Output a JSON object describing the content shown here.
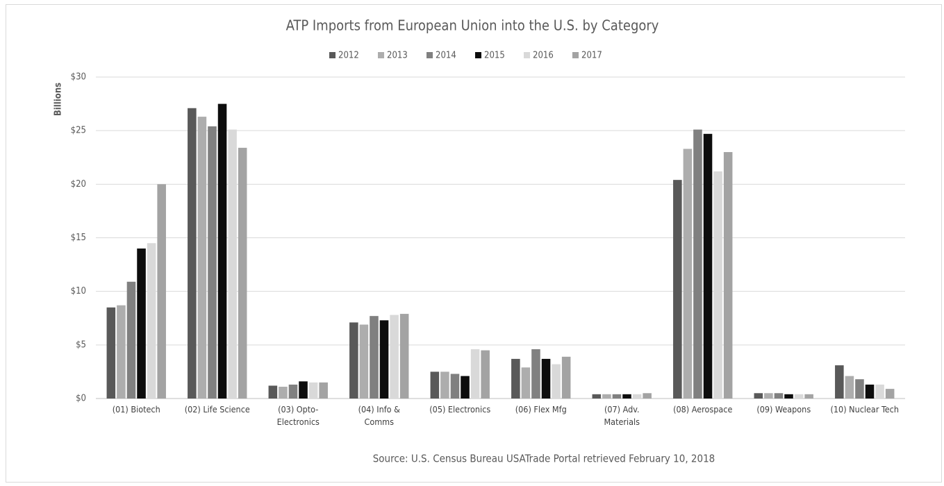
{
  "chart_data": {
    "type": "bar",
    "title": "ATP Imports from European Union into the U.S. by Category",
    "y_label": "Billions",
    "source": "Source: U.S. Census Bureau USATrade Portal retrieved February 10, 2018",
    "categories": [
      "(01) Biotech",
      "(02) Life Science",
      "(03) Opto-\nElectronics",
      "(04) Info &\nComms",
      "(05) Electronics",
      "(06) Flex Mfg",
      "(07) Adv.\nMaterials",
      "(08) Aerospace",
      "(09) Weapons",
      "(10) Nuclear Tech"
    ],
    "series": [
      {
        "name": "2012",
        "color": "#595959",
        "values": [
          8.5,
          27.1,
          1.2,
          7.1,
          2.5,
          3.7,
          0.4,
          20.4,
          0.5,
          3.1
        ]
      },
      {
        "name": "2013",
        "color": "#adadad",
        "values": [
          8.7,
          26.3,
          1.1,
          6.9,
          2.5,
          2.9,
          0.4,
          23.3,
          0.5,
          2.1
        ]
      },
      {
        "name": "2014",
        "color": "#808080",
        "values": [
          10.9,
          25.4,
          1.3,
          7.7,
          2.3,
          4.6,
          0.4,
          25.1,
          0.5,
          1.8
        ]
      },
      {
        "name": "2015",
        "color": "#0d0d0d",
        "values": [
          14.0,
          27.5,
          1.6,
          7.3,
          2.1,
          3.7,
          0.4,
          24.7,
          0.4,
          1.3
        ]
      },
      {
        "name": "2016",
        "color": "#d9d9d9",
        "values": [
          14.5,
          25.1,
          1.5,
          7.8,
          4.6,
          3.2,
          0.4,
          21.2,
          0.4,
          1.3
        ]
      },
      {
        "name": "2017",
        "color": "#a3a3a3",
        "values": [
          20.0,
          23.4,
          1.5,
          7.9,
          4.5,
          3.9,
          0.5,
          23.0,
          0.4,
          0.9
        ]
      }
    ],
    "ylim": [
      0,
      30
    ],
    "yticks": [
      {
        "value": 0,
        "label": "$0"
      },
      {
        "value": 5,
        "label": "$5"
      },
      {
        "value": 10,
        "label": "$10"
      },
      {
        "value": 15,
        "label": "$15"
      },
      {
        "value": 20,
        "label": "$20"
      },
      {
        "value": 25,
        "label": "$25"
      },
      {
        "value": 30,
        "label": "$30"
      }
    ],
    "grid": true,
    "legend": "top"
  }
}
